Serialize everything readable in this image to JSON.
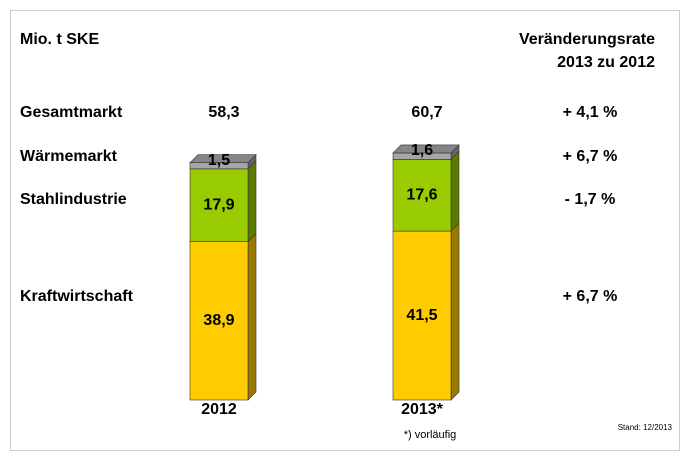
{
  "chart_data": {
    "type": "bar",
    "stacked": true,
    "unit_label": "Mio. t SKE",
    "change_title": [
      "Veränderungsrate",
      "2013 zu 2012"
    ],
    "categories": [
      "2012",
      "2013*"
    ],
    "series": [
      {
        "name": "Kraftwirtschaft",
        "color": "#ffcc00",
        "values": [
          38.9,
          41.5
        ],
        "value_labels": [
          "38,9",
          "41,5"
        ]
      },
      {
        "name": "Stahlindustrie",
        "color": "#99cc00",
        "values": [
          17.9,
          17.6
        ],
        "value_labels": [
          "17,9",
          "17,6"
        ]
      },
      {
        "name": "Wärmemarkt",
        "color": "#a6a6a6",
        "values": [
          1.5,
          1.6
        ],
        "value_labels": [
          "1,5",
          "1,6"
        ]
      }
    ],
    "total_label": "Gesamtmarkt",
    "totals": [
      58.3,
      60.7
    ],
    "total_labels": [
      "58,3",
      "60,7"
    ],
    "total_change_label": "+ 4,1 %",
    "change_labels": [
      "+ 6,7 %",
      "- 1,7 %",
      "+ 6,7 %"
    ],
    "footnote": "*) vorläufig",
    "source": "Stand: 12/2013"
  }
}
